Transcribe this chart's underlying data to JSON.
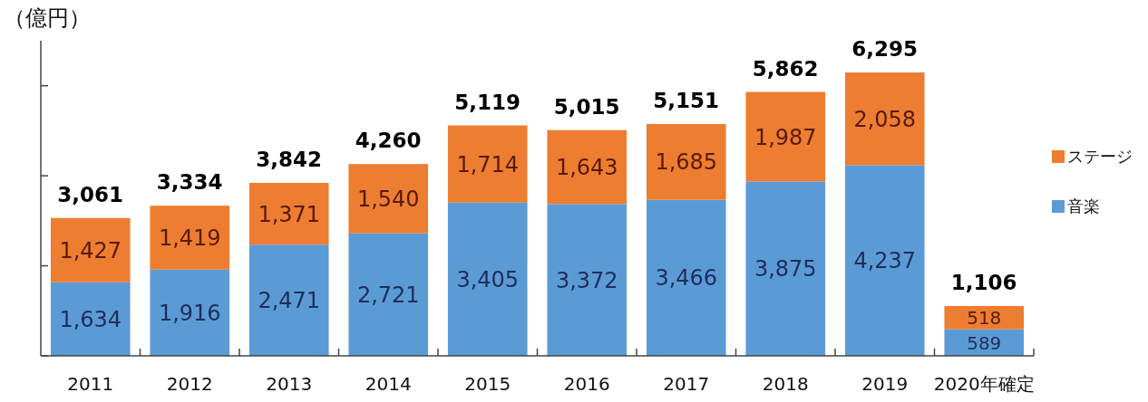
{
  "chart_data": {
    "type": "bar",
    "stacked": true,
    "ylabel": "（億円）",
    "categories": [
      "2011",
      "2012",
      "2013",
      "2014",
      "2015",
      "2016",
      "2017",
      "2018",
      "2019",
      "2020年確定"
    ],
    "series": [
      {
        "name": "音楽",
        "color": "#5b9bd5",
        "values": [
          1634,
          1916,
          2471,
          2721,
          3405,
          3372,
          3466,
          3875,
          4237,
          589
        ],
        "value_labels": [
          "1,634",
          "1,916",
          "2,471",
          "2,721",
          "3,405",
          "3,372",
          "3,466",
          "3,875",
          "4,237",
          "589"
        ]
      },
      {
        "name": "ステージ",
        "color": "#ed7d31",
        "values": [
          1427,
          1419,
          1371,
          1540,
          1714,
          1643,
          1685,
          1987,
          2058,
          518
        ],
        "value_labels": [
          "1,427",
          "1,419",
          "1,371",
          "1,540",
          "1,714",
          "1,643",
          "1,685",
          "1,987",
          "2,058",
          "518"
        ]
      }
    ],
    "totals": [
      "3,061",
      "3,334",
      "3,842",
      "4,260",
      "5,119",
      "5,015",
      "5,151",
      "5,862",
      "6,295",
      "1,106"
    ],
    "ylim": [
      0,
      7000
    ],
    "yticks": [
      {
        "value": 0,
        "label": null
      },
      {
        "value": 2000,
        "label": null
      },
      {
        "value": 4000,
        "label": null
      },
      {
        "value": 6000,
        "label": null
      }
    ],
    "legend": "right",
    "grid": false
  }
}
